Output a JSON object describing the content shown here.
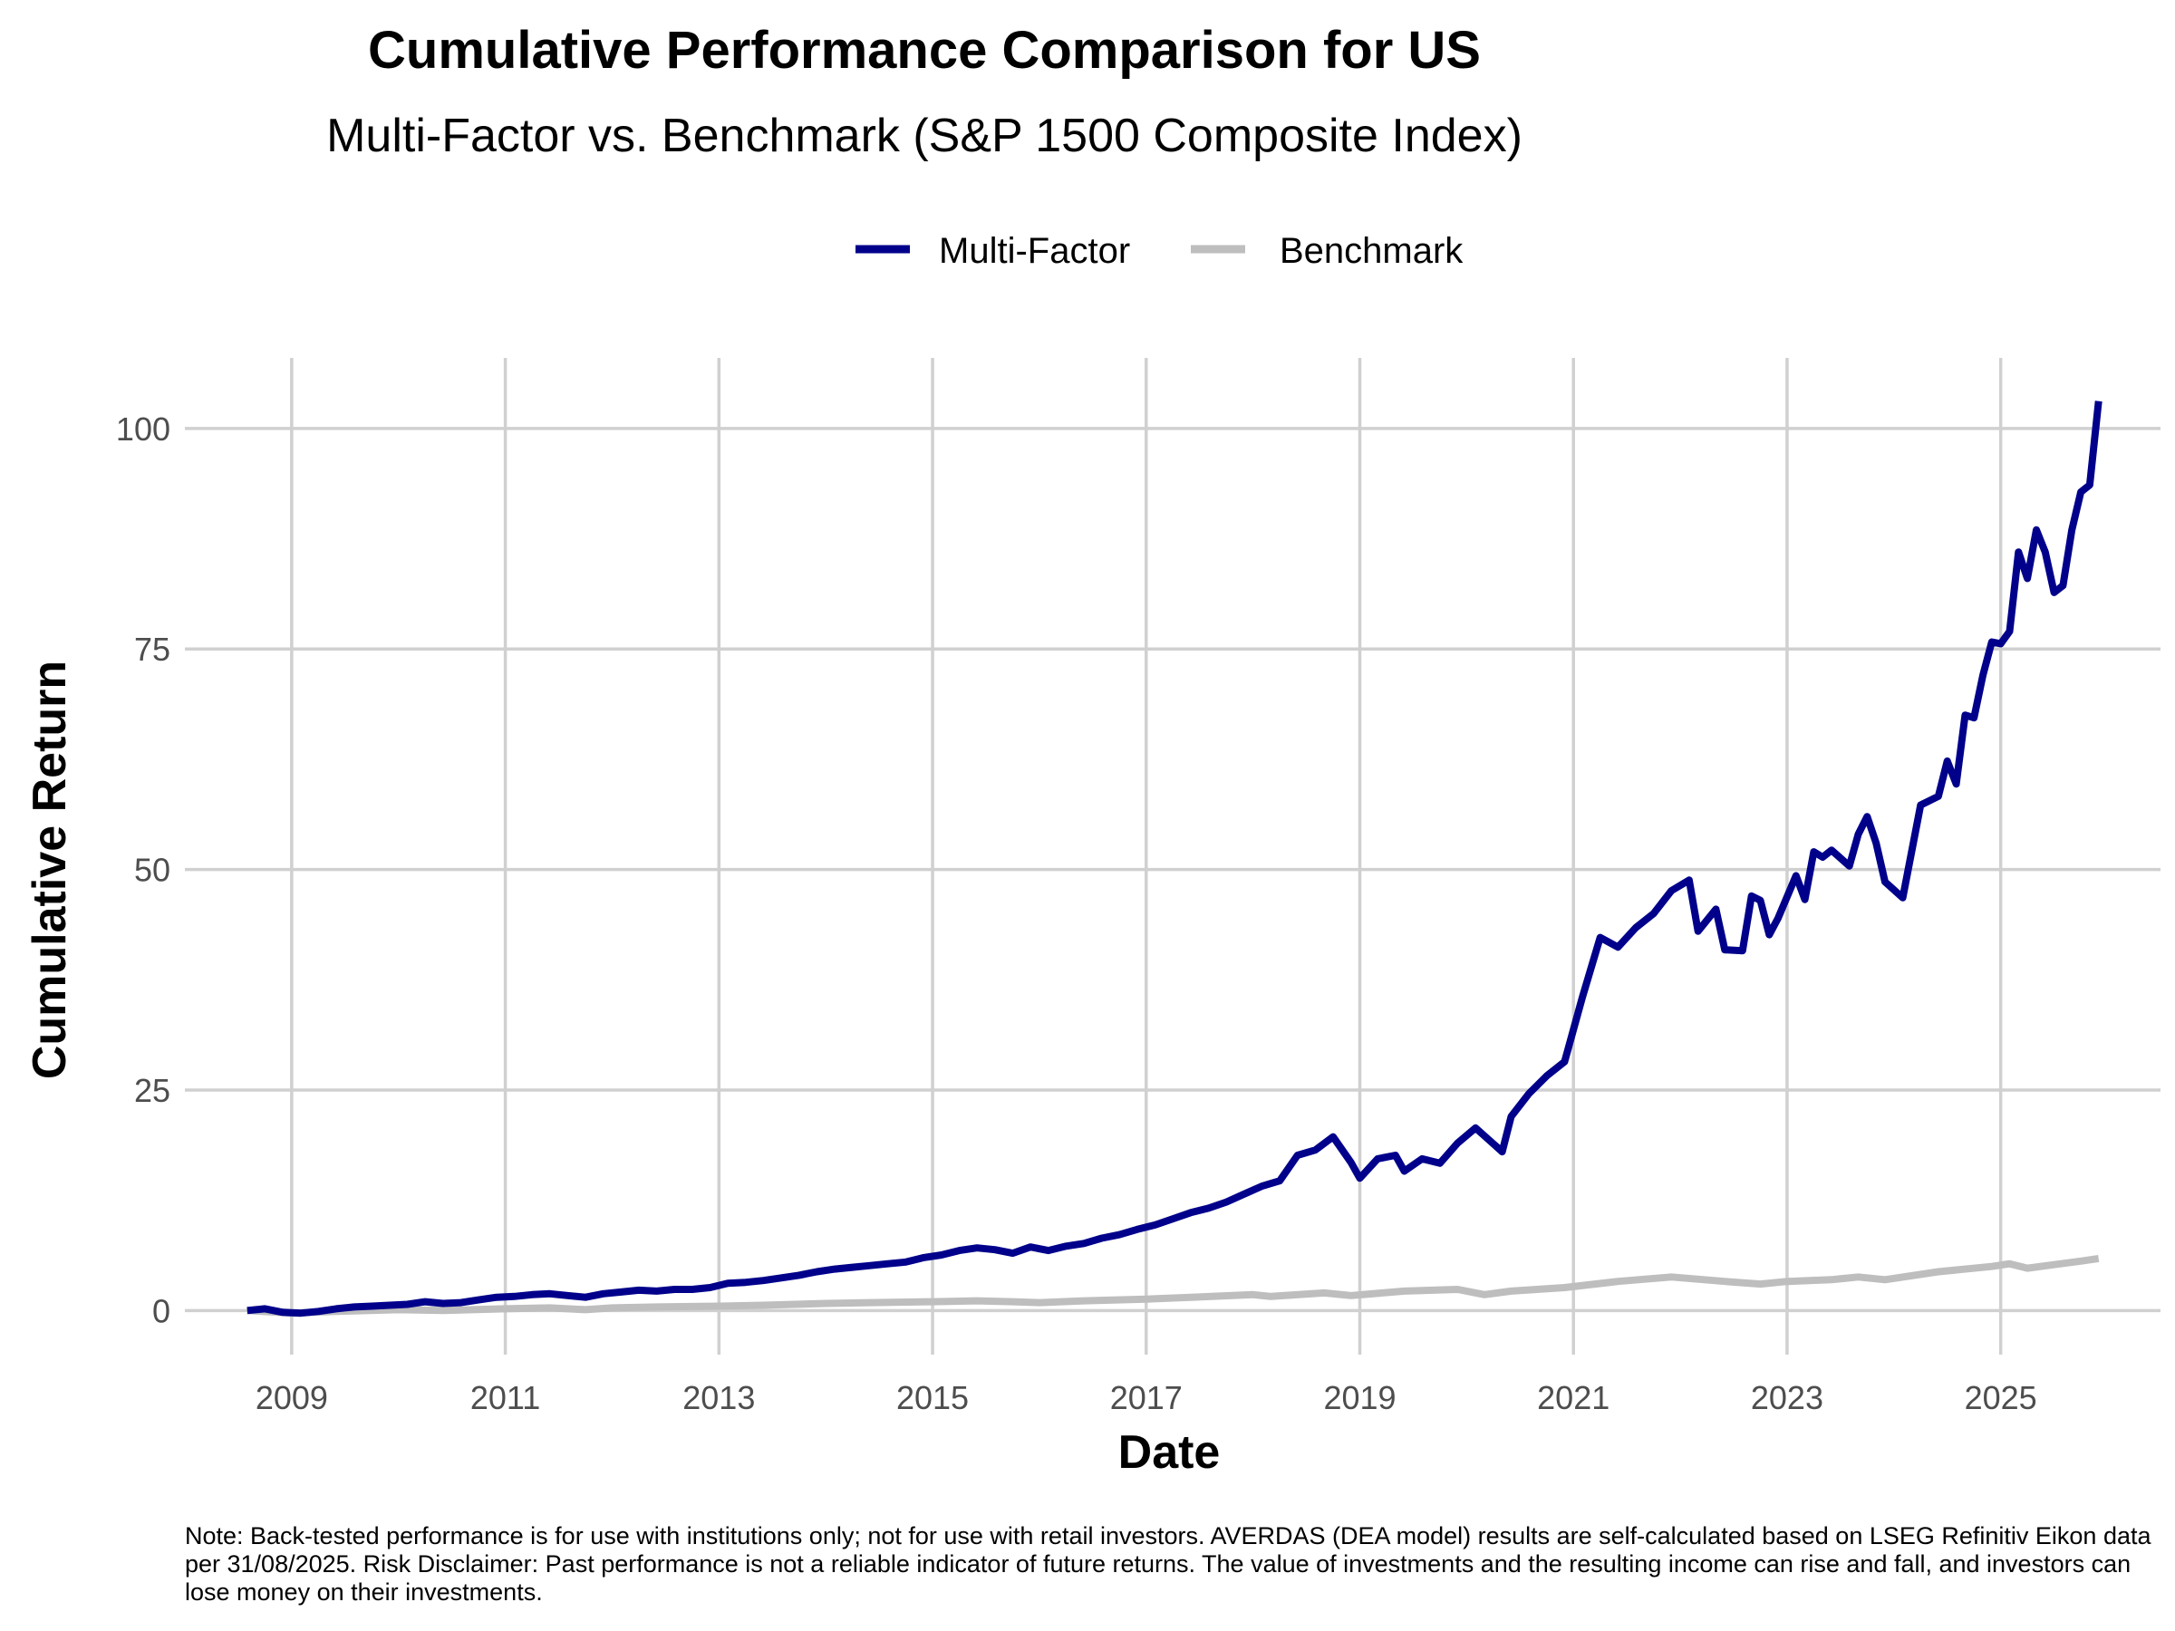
{
  "chart_data": {
    "type": "line",
    "title": "Cumulative Performance Comparison for US",
    "subtitle": "Multi-Factor vs. Benchmark (S&P 1500 Composite Index)",
    "xlabel": "Date",
    "ylabel": "Cumulative Return",
    "xlim": [
      "2008-01-01",
      "2026-06-30"
    ],
    "ylim": [
      -5,
      108
    ],
    "x_ticks": [
      "2009",
      "2011",
      "2013",
      "2015",
      "2017",
      "2019",
      "2021",
      "2023",
      "2025"
    ],
    "y_ticks": [
      0,
      25,
      50,
      75,
      100
    ],
    "grid": true,
    "legend_position": "top",
    "colors": {
      "multi_factor": "#00008b",
      "benchmark": "#bebebe",
      "grid": "#d0d0d0"
    },
    "series": [
      {
        "name": "Multi-Factor",
        "points": [
          [
            "2008-08",
            0.0
          ],
          [
            "2008-10",
            0.2
          ],
          [
            "2008-12",
            -0.2
          ],
          [
            "2009-02",
            -0.3
          ],
          [
            "2009-04",
            -0.1
          ],
          [
            "2009-06",
            0.2
          ],
          [
            "2009-08",
            0.4
          ],
          [
            "2009-10",
            0.5
          ],
          [
            "2009-12",
            0.6
          ],
          [
            "2010-02",
            0.7
          ],
          [
            "2010-04",
            1.0
          ],
          [
            "2010-06",
            0.8
          ],
          [
            "2010-08",
            0.9
          ],
          [
            "2010-10",
            1.2
          ],
          [
            "2010-12",
            1.5
          ],
          [
            "2011-02",
            1.6
          ],
          [
            "2011-04",
            1.8
          ],
          [
            "2011-06",
            1.9
          ],
          [
            "2011-08",
            1.7
          ],
          [
            "2011-10",
            1.5
          ],
          [
            "2011-12",
            1.9
          ],
          [
            "2012-02",
            2.1
          ],
          [
            "2012-04",
            2.3
          ],
          [
            "2012-06",
            2.2
          ],
          [
            "2012-08",
            2.4
          ],
          [
            "2012-10",
            2.4
          ],
          [
            "2012-12",
            2.6
          ],
          [
            "2013-02",
            3.1
          ],
          [
            "2013-04",
            3.2
          ],
          [
            "2013-06",
            3.4
          ],
          [
            "2013-08",
            3.7
          ],
          [
            "2013-10",
            4.0
          ],
          [
            "2013-12",
            4.4
          ],
          [
            "2014-02",
            4.7
          ],
          [
            "2014-04",
            4.9
          ],
          [
            "2014-06",
            5.1
          ],
          [
            "2014-08",
            5.3
          ],
          [
            "2014-10",
            5.5
          ],
          [
            "2014-12",
            6.0
          ],
          [
            "2015-02",
            6.3
          ],
          [
            "2015-04",
            6.8
          ],
          [
            "2015-06",
            7.1
          ],
          [
            "2015-08",
            6.9
          ],
          [
            "2015-10",
            6.5
          ],
          [
            "2015-12",
            7.2
          ],
          [
            "2016-02",
            6.8
          ],
          [
            "2016-04",
            7.3
          ],
          [
            "2016-06",
            7.6
          ],
          [
            "2016-08",
            8.2
          ],
          [
            "2016-10",
            8.6
          ],
          [
            "2016-12",
            9.2
          ],
          [
            "2017-02",
            9.7
          ],
          [
            "2017-04",
            10.4
          ],
          [
            "2017-06",
            11.1
          ],
          [
            "2017-08",
            11.6
          ],
          [
            "2017-10",
            12.3
          ],
          [
            "2017-12",
            13.2
          ],
          [
            "2018-02",
            14.1
          ],
          [
            "2018-04",
            14.7
          ],
          [
            "2018-06",
            17.6
          ],
          [
            "2018-08",
            18.2
          ],
          [
            "2018-10",
            19.7
          ],
          [
            "2018-12",
            16.8
          ],
          [
            "2019-01",
            15.0
          ],
          [
            "2019-03",
            17.2
          ],
          [
            "2019-05",
            17.6
          ],
          [
            "2019-06",
            15.8
          ],
          [
            "2019-08",
            17.2
          ],
          [
            "2019-10",
            16.7
          ],
          [
            "2019-12",
            19.0
          ],
          [
            "2020-02",
            20.7
          ],
          [
            "2020-04",
            18.9
          ],
          [
            "2020-05",
            18.0
          ],
          [
            "2020-06",
            22.0
          ],
          [
            "2020-08",
            24.6
          ],
          [
            "2020-10",
            26.6
          ],
          [
            "2020-12",
            28.2
          ],
          [
            "2021-02",
            35.5
          ],
          [
            "2021-04",
            42.3
          ],
          [
            "2021-06",
            41.2
          ],
          [
            "2021-08",
            43.4
          ],
          [
            "2021-10",
            45.0
          ],
          [
            "2021-12",
            47.6
          ],
          [
            "2022-02",
            48.8
          ],
          [
            "2022-03",
            43.0
          ],
          [
            "2022-05",
            45.5
          ],
          [
            "2022-06",
            40.9
          ],
          [
            "2022-08",
            40.8
          ],
          [
            "2022-09",
            47.0
          ],
          [
            "2022-10",
            46.5
          ],
          [
            "2022-11",
            42.6
          ],
          [
            "2022-12",
            44.5
          ],
          [
            "2023-02",
            49.3
          ],
          [
            "2023-03",
            46.6
          ],
          [
            "2023-04",
            52.0
          ],
          [
            "2023-05",
            51.4
          ],
          [
            "2023-06",
            52.2
          ],
          [
            "2023-08",
            50.4
          ],
          [
            "2023-09",
            54.0
          ],
          [
            "2023-10",
            56.0
          ],
          [
            "2023-11",
            53.0
          ],
          [
            "2023-12",
            48.6
          ],
          [
            "2024-02",
            46.8
          ],
          [
            "2024-04",
            57.3
          ],
          [
            "2024-06",
            58.3
          ],
          [
            "2024-07",
            62.3
          ],
          [
            "2024-08",
            59.7
          ],
          [
            "2024-09",
            67.5
          ],
          [
            "2024-10",
            67.2
          ],
          [
            "2024-11",
            72.0
          ],
          [
            "2024-12",
            75.8
          ],
          [
            "2025-01",
            75.6
          ],
          [
            "2025-02",
            77.0
          ],
          [
            "2025-03",
            86.0
          ],
          [
            "2025-04",
            83.0
          ],
          [
            "2025-05",
            88.5
          ],
          [
            "2025-06",
            86.0
          ],
          [
            "2025-07",
            81.4
          ],
          [
            "2025-08",
            82.2
          ],
          [
            "2025-09",
            88.5
          ],
          [
            "2025-10",
            92.8
          ],
          [
            "2025-11",
            93.6
          ],
          [
            "2025-12",
            103.1
          ]
        ]
      },
      {
        "name": "Benchmark",
        "points": [
          [
            "2008-08",
            0.0
          ],
          [
            "2009-01",
            -0.3
          ],
          [
            "2009-06",
            -0.1
          ],
          [
            "2010-01",
            0.1
          ],
          [
            "2010-06",
            0.0
          ],
          [
            "2011-01",
            0.2
          ],
          [
            "2011-06",
            0.3
          ],
          [
            "2011-10",
            0.1
          ],
          [
            "2012-01",
            0.3
          ],
          [
            "2012-06",
            0.4
          ],
          [
            "2013-01",
            0.5
          ],
          [
            "2013-06",
            0.6
          ],
          [
            "2014-01",
            0.8
          ],
          [
            "2014-06",
            0.9
          ],
          [
            "2015-01",
            1.0
          ],
          [
            "2015-06",
            1.1
          ],
          [
            "2015-10",
            1.0
          ],
          [
            "2016-01",
            0.9
          ],
          [
            "2016-06",
            1.1
          ],
          [
            "2017-01",
            1.3
          ],
          [
            "2017-06",
            1.5
          ],
          [
            "2018-01",
            1.8
          ],
          [
            "2018-03",
            1.6
          ],
          [
            "2018-09",
            2.0
          ],
          [
            "2018-12",
            1.7
          ],
          [
            "2019-06",
            2.2
          ],
          [
            "2019-12",
            2.4
          ],
          [
            "2020-03",
            1.8
          ],
          [
            "2020-06",
            2.2
          ],
          [
            "2020-12",
            2.6
          ],
          [
            "2021-06",
            3.3
          ],
          [
            "2021-12",
            3.8
          ],
          [
            "2022-06",
            3.3
          ],
          [
            "2022-10",
            3.0
          ],
          [
            "2023-01",
            3.3
          ],
          [
            "2023-06",
            3.5
          ],
          [
            "2023-09",
            3.8
          ],
          [
            "2023-12",
            3.5
          ],
          [
            "2024-06",
            4.4
          ],
          [
            "2024-12",
            5.0
          ],
          [
            "2025-02",
            5.3
          ],
          [
            "2025-04",
            4.8
          ],
          [
            "2025-07",
            5.2
          ],
          [
            "2025-10",
            5.6
          ],
          [
            "2025-12",
            5.9
          ]
        ]
      }
    ],
    "footnote": "Note: Back-tested performance is for use with institutions only; not for use with retail investors. AVERDAS (DEA model) results are self-calculated based on LSEG Refinitiv Eikon data per 31/08/2025. Risk Disclaimer: Past performance is not a reliable indicator of future returns. The value of investments and the resulting income can rise and fall, and investors can lose money on their investments."
  }
}
